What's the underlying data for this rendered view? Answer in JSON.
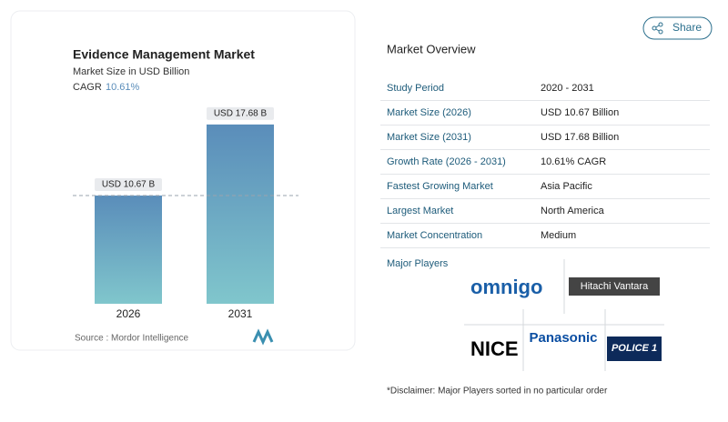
{
  "chart_data": {
    "type": "bar",
    "title": "Evidence Management Market",
    "subtitle": "Market Size in USD Billion",
    "cagr_label": "CAGR",
    "cagr_value": "10.61%",
    "categories": [
      "2026",
      "2031"
    ],
    "values": [
      10.67,
      17.68
    ],
    "value_labels": [
      "USD 10.67 B",
      "USD 17.68 B"
    ],
    "ylim": [
      0,
      20
    ],
    "source": "Source :  Mordor Intelligence"
  },
  "share": "Share",
  "overview": {
    "title": "Market Overview",
    "rows": [
      [
        "Study Period",
        "2020 - 2031"
      ],
      [
        "Market Size (2026)",
        "USD 10.67 Billion"
      ],
      [
        "Market Size (2031)",
        "USD 17.68 Billion"
      ],
      [
        "Growth Rate (2026 - 2031)",
        "10.61% CAGR"
      ],
      [
        "Fastest Growing Market",
        "Asia Pacific"
      ],
      [
        "Largest Market",
        "North America"
      ],
      [
        "Market Concentration",
        "Medium"
      ]
    ]
  },
  "players": {
    "title": "Major Players",
    "logos": [
      "omnigo",
      "Hitachi Vantara",
      "NICE",
      "Panasonic",
      "POLICE 1"
    ]
  },
  "disclaimer": "*Disclaimer: Major Players sorted in no particular order"
}
